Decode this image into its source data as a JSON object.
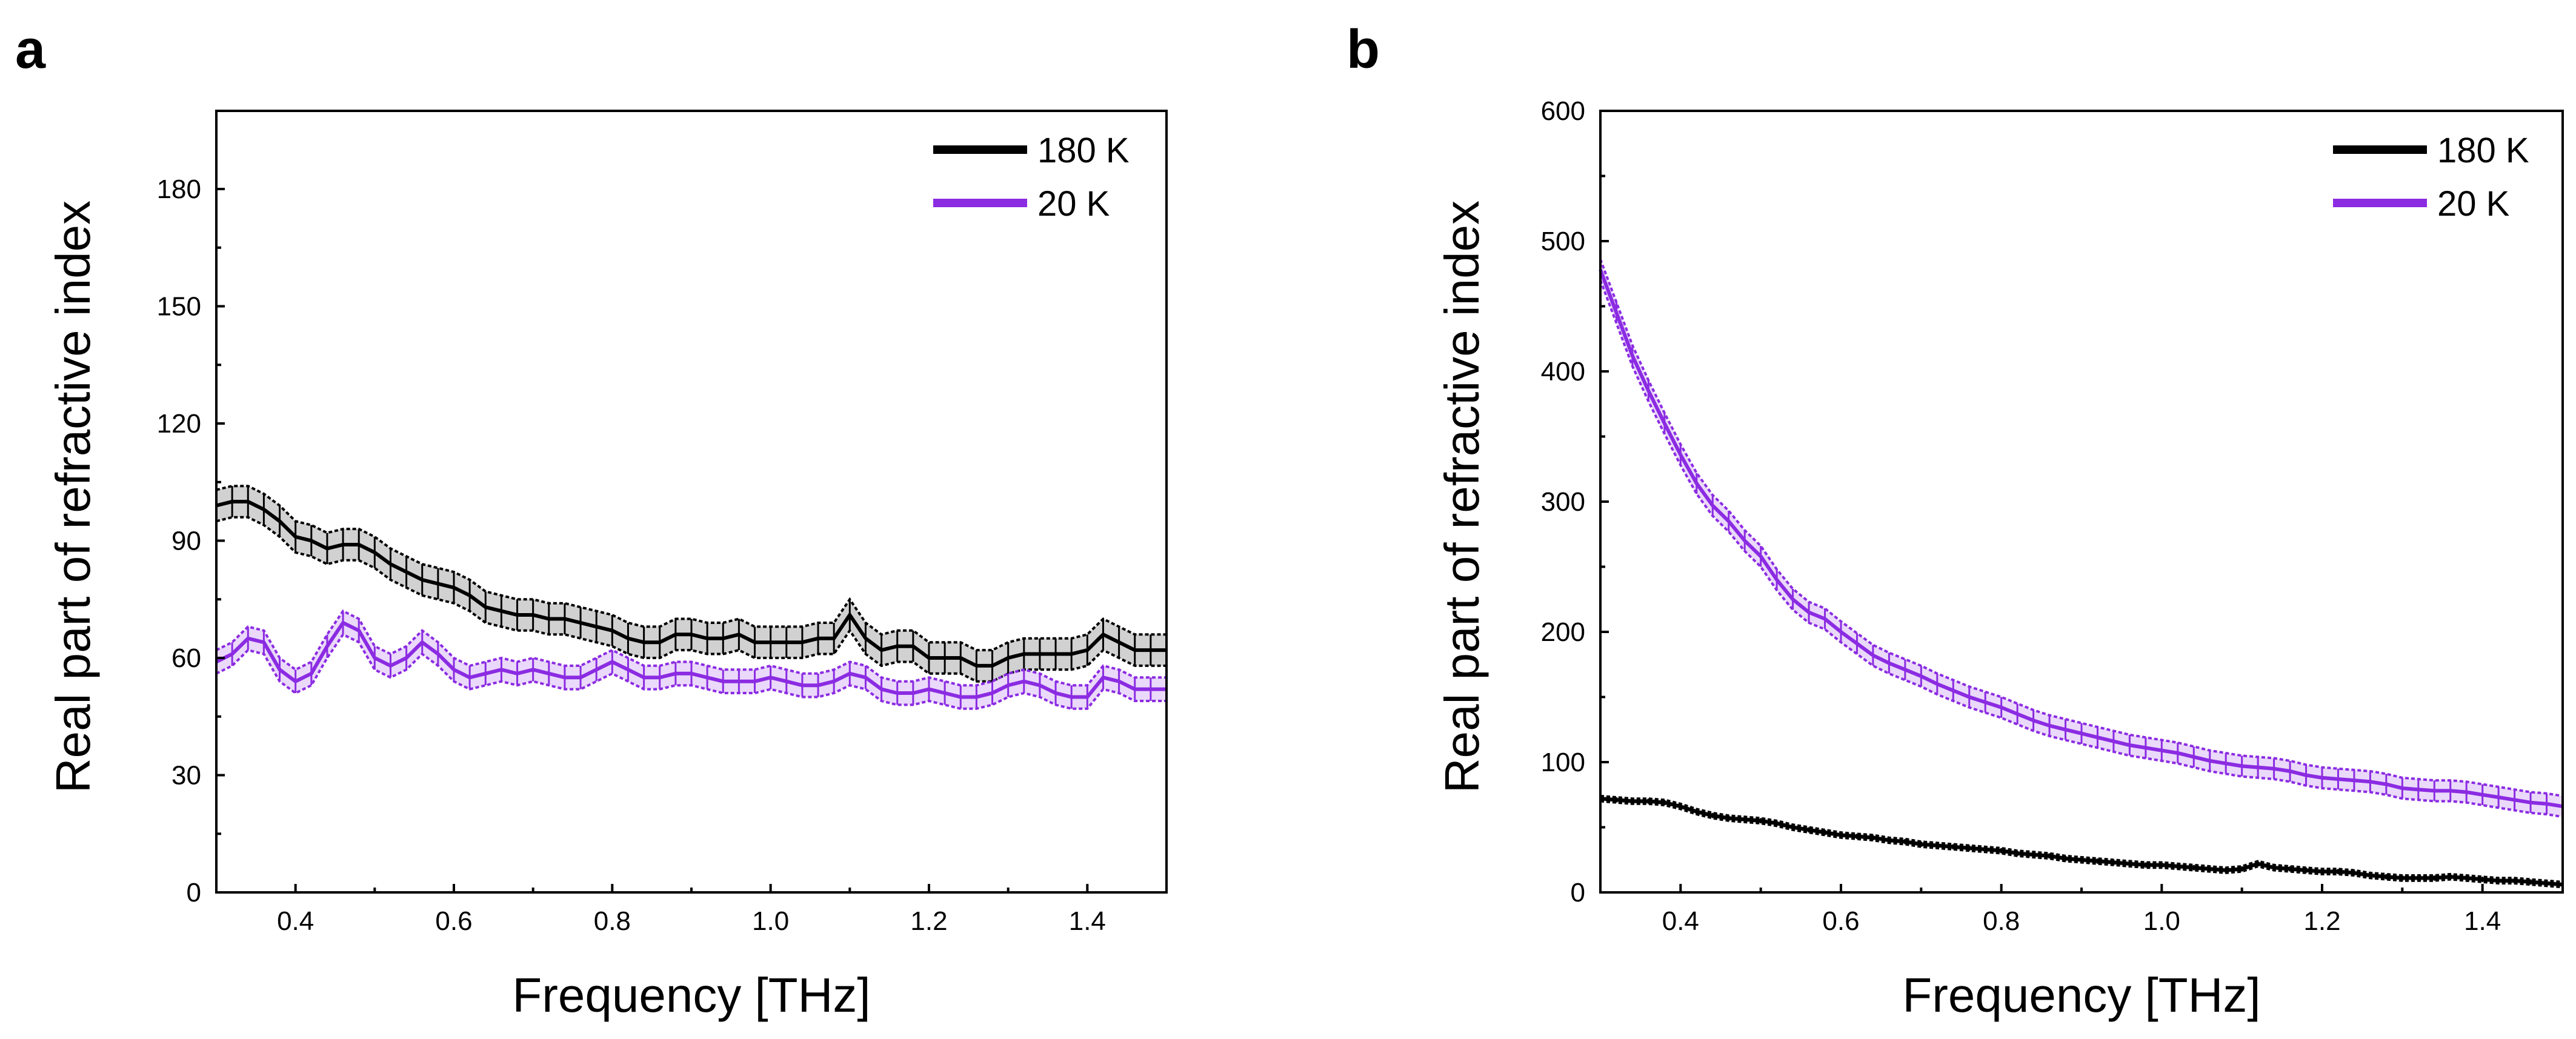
{
  "chart_data": [
    {
      "panel": "a",
      "type": "line",
      "xlabel": "Frequency [THz]",
      "ylabel": "Real part of refractive index",
      "xlim": [
        0.3,
        1.5
      ],
      "ylim": [
        0,
        200
      ],
      "xticks": [
        0.4,
        0.6,
        0.8,
        1.0,
        1.2,
        1.4
      ],
      "xtick_labels": [
        "0.4",
        "0.6",
        "0.8",
        "1.0",
        "1.2",
        "1.4"
      ],
      "yticks": [
        0,
        30,
        60,
        90,
        120,
        150,
        180
      ],
      "ytick_labels": [
        "0",
        "30",
        "60",
        "90",
        "120",
        "150",
        "180"
      ],
      "legend": "top-right",
      "series": [
        {
          "name": "180 K",
          "color": "#000000",
          "error": 4,
          "x": [
            0.3,
            0.32,
            0.34,
            0.36,
            0.38,
            0.4,
            0.42,
            0.44,
            0.46,
            0.48,
            0.5,
            0.52,
            0.54,
            0.56,
            0.58,
            0.6,
            0.62,
            0.64,
            0.66,
            0.68,
            0.7,
            0.72,
            0.74,
            0.76,
            0.78,
            0.8,
            0.82,
            0.84,
            0.86,
            0.88,
            0.9,
            0.92,
            0.94,
            0.96,
            0.98,
            1.0,
            1.02,
            1.04,
            1.06,
            1.08,
            1.1,
            1.12,
            1.14,
            1.16,
            1.18,
            1.2,
            1.22,
            1.24,
            1.26,
            1.28,
            1.3,
            1.32,
            1.34,
            1.36,
            1.38,
            1.4,
            1.42,
            1.44,
            1.46,
            1.48,
            1.5
          ],
          "values": [
            99,
            100,
            100,
            98,
            95,
            91,
            90,
            88,
            89,
            89,
            87,
            84,
            82,
            80,
            79,
            78,
            76,
            73,
            72,
            71,
            71,
            70,
            70,
            69,
            68,
            67,
            65,
            64,
            64,
            66,
            66,
            65,
            65,
            66,
            64,
            64,
            64,
            64,
            65,
            65,
            71,
            65,
            62,
            63,
            63,
            60,
            60,
            60,
            58,
            58,
            60,
            61,
            61,
            61,
            61,
            62,
            66,
            64,
            62,
            62,
            62
          ]
        },
        {
          "name": "20 K",
          "color": "#8B2BE2",
          "error": 3,
          "x": [
            0.3,
            0.32,
            0.34,
            0.36,
            0.38,
            0.4,
            0.42,
            0.44,
            0.46,
            0.48,
            0.5,
            0.52,
            0.54,
            0.56,
            0.58,
            0.6,
            0.62,
            0.64,
            0.66,
            0.68,
            0.7,
            0.72,
            0.74,
            0.76,
            0.78,
            0.8,
            0.82,
            0.84,
            0.86,
            0.88,
            0.9,
            0.92,
            0.94,
            0.96,
            0.98,
            1.0,
            1.02,
            1.04,
            1.06,
            1.08,
            1.1,
            1.12,
            1.14,
            1.16,
            1.18,
            1.2,
            1.22,
            1.24,
            1.26,
            1.28,
            1.3,
            1.32,
            1.34,
            1.36,
            1.38,
            1.4,
            1.42,
            1.44,
            1.46,
            1.48,
            1.5
          ],
          "values": [
            59,
            61,
            65,
            64,
            57,
            54,
            56,
            63,
            69,
            67,
            60,
            58,
            60,
            64,
            61,
            57,
            55,
            56,
            57,
            56,
            57,
            56,
            55,
            55,
            57,
            59,
            57,
            55,
            55,
            56,
            56,
            55,
            54,
            54,
            54,
            55,
            54,
            53,
            53,
            54,
            56,
            55,
            52,
            51,
            51,
            52,
            51,
            50,
            50,
            51,
            53,
            54,
            53,
            51,
            50,
            50,
            55,
            54,
            52,
            52,
            52
          ]
        }
      ]
    },
    {
      "panel": "b",
      "type": "line",
      "xlabel": "Frequency [THz]",
      "ylabel": "Real part of refractive index",
      "xlim": [
        0.3,
        1.5
      ],
      "ylim": [
        0,
        600
      ],
      "xticks": [
        0.4,
        0.6,
        0.8,
        1.0,
        1.2,
        1.4
      ],
      "xtick_labels": [
        "0.4",
        "0.6",
        "0.8",
        "1.0",
        "1.2",
        "1.4"
      ],
      "yticks": [
        0,
        100,
        200,
        300,
        400,
        500,
        600
      ],
      "ytick_labels": [
        "0",
        "100",
        "200",
        "300",
        "400",
        "500",
        "600"
      ],
      "legend": "top-right",
      "series": [
        {
          "name": "180 K",
          "color": "#000000",
          "error": 2,
          "x": [
            0.3,
            0.32,
            0.34,
            0.36,
            0.38,
            0.4,
            0.42,
            0.44,
            0.46,
            0.48,
            0.5,
            0.52,
            0.54,
            0.56,
            0.58,
            0.6,
            0.62,
            0.64,
            0.66,
            0.68,
            0.7,
            0.72,
            0.74,
            0.76,
            0.78,
            0.8,
            0.82,
            0.84,
            0.86,
            0.88,
            0.9,
            0.92,
            0.94,
            0.96,
            0.98,
            1.0,
            1.02,
            1.04,
            1.06,
            1.08,
            1.1,
            1.12,
            1.14,
            1.16,
            1.18,
            1.2,
            1.22,
            1.24,
            1.26,
            1.28,
            1.3,
            1.32,
            1.34,
            1.36,
            1.38,
            1.4,
            1.42,
            1.44,
            1.46,
            1.48,
            1.5
          ],
          "values": [
            72,
            71,
            70,
            70,
            69,
            66,
            62,
            59,
            57,
            56,
            55,
            53,
            50,
            48,
            46,
            44,
            43,
            42,
            40,
            39,
            37,
            36,
            35,
            34,
            33,
            32,
            30,
            29,
            28,
            26,
            25,
            24,
            23,
            22,
            21,
            21,
            20,
            19,
            18,
            17,
            18,
            22,
            19,
            18,
            17,
            16,
            16,
            15,
            13,
            12,
            11,
            11,
            11,
            12,
            11,
            10,
            9,
            9,
            8,
            7,
            6
          ]
        },
        {
          "name": "20 K",
          "color": "#8B2BE2",
          "error": 8,
          "x": [
            0.3,
            0.32,
            0.34,
            0.36,
            0.38,
            0.4,
            0.42,
            0.44,
            0.46,
            0.48,
            0.5,
            0.52,
            0.54,
            0.56,
            0.58,
            0.6,
            0.62,
            0.64,
            0.66,
            0.68,
            0.7,
            0.72,
            0.74,
            0.76,
            0.78,
            0.8,
            0.82,
            0.84,
            0.86,
            0.88,
            0.9,
            0.92,
            0.94,
            0.96,
            0.98,
            1.0,
            1.02,
            1.04,
            1.06,
            1.08,
            1.1,
            1.12,
            1.14,
            1.16,
            1.18,
            1.2,
            1.22,
            1.24,
            1.26,
            1.28,
            1.3,
            1.32,
            1.34,
            1.36,
            1.38,
            1.4,
            1.42,
            1.44,
            1.46,
            1.48,
            1.5
          ],
          "values": [
            478,
            445,
            412,
            385,
            360,
            336,
            314,
            297,
            285,
            270,
            258,
            240,
            225,
            215,
            210,
            200,
            191,
            182,
            176,
            171,
            166,
            160,
            155,
            150,
            146,
            142,
            137,
            132,
            128,
            125,
            122,
            119,
            116,
            113,
            111,
            109,
            107,
            104,
            101,
            99,
            97,
            96,
            95,
            93,
            90,
            88,
            87,
            86,
            85,
            83,
            80,
            79,
            78,
            78,
            77,
            75,
            73,
            71,
            69,
            68,
            66
          ]
        }
      ]
    }
  ]
}
